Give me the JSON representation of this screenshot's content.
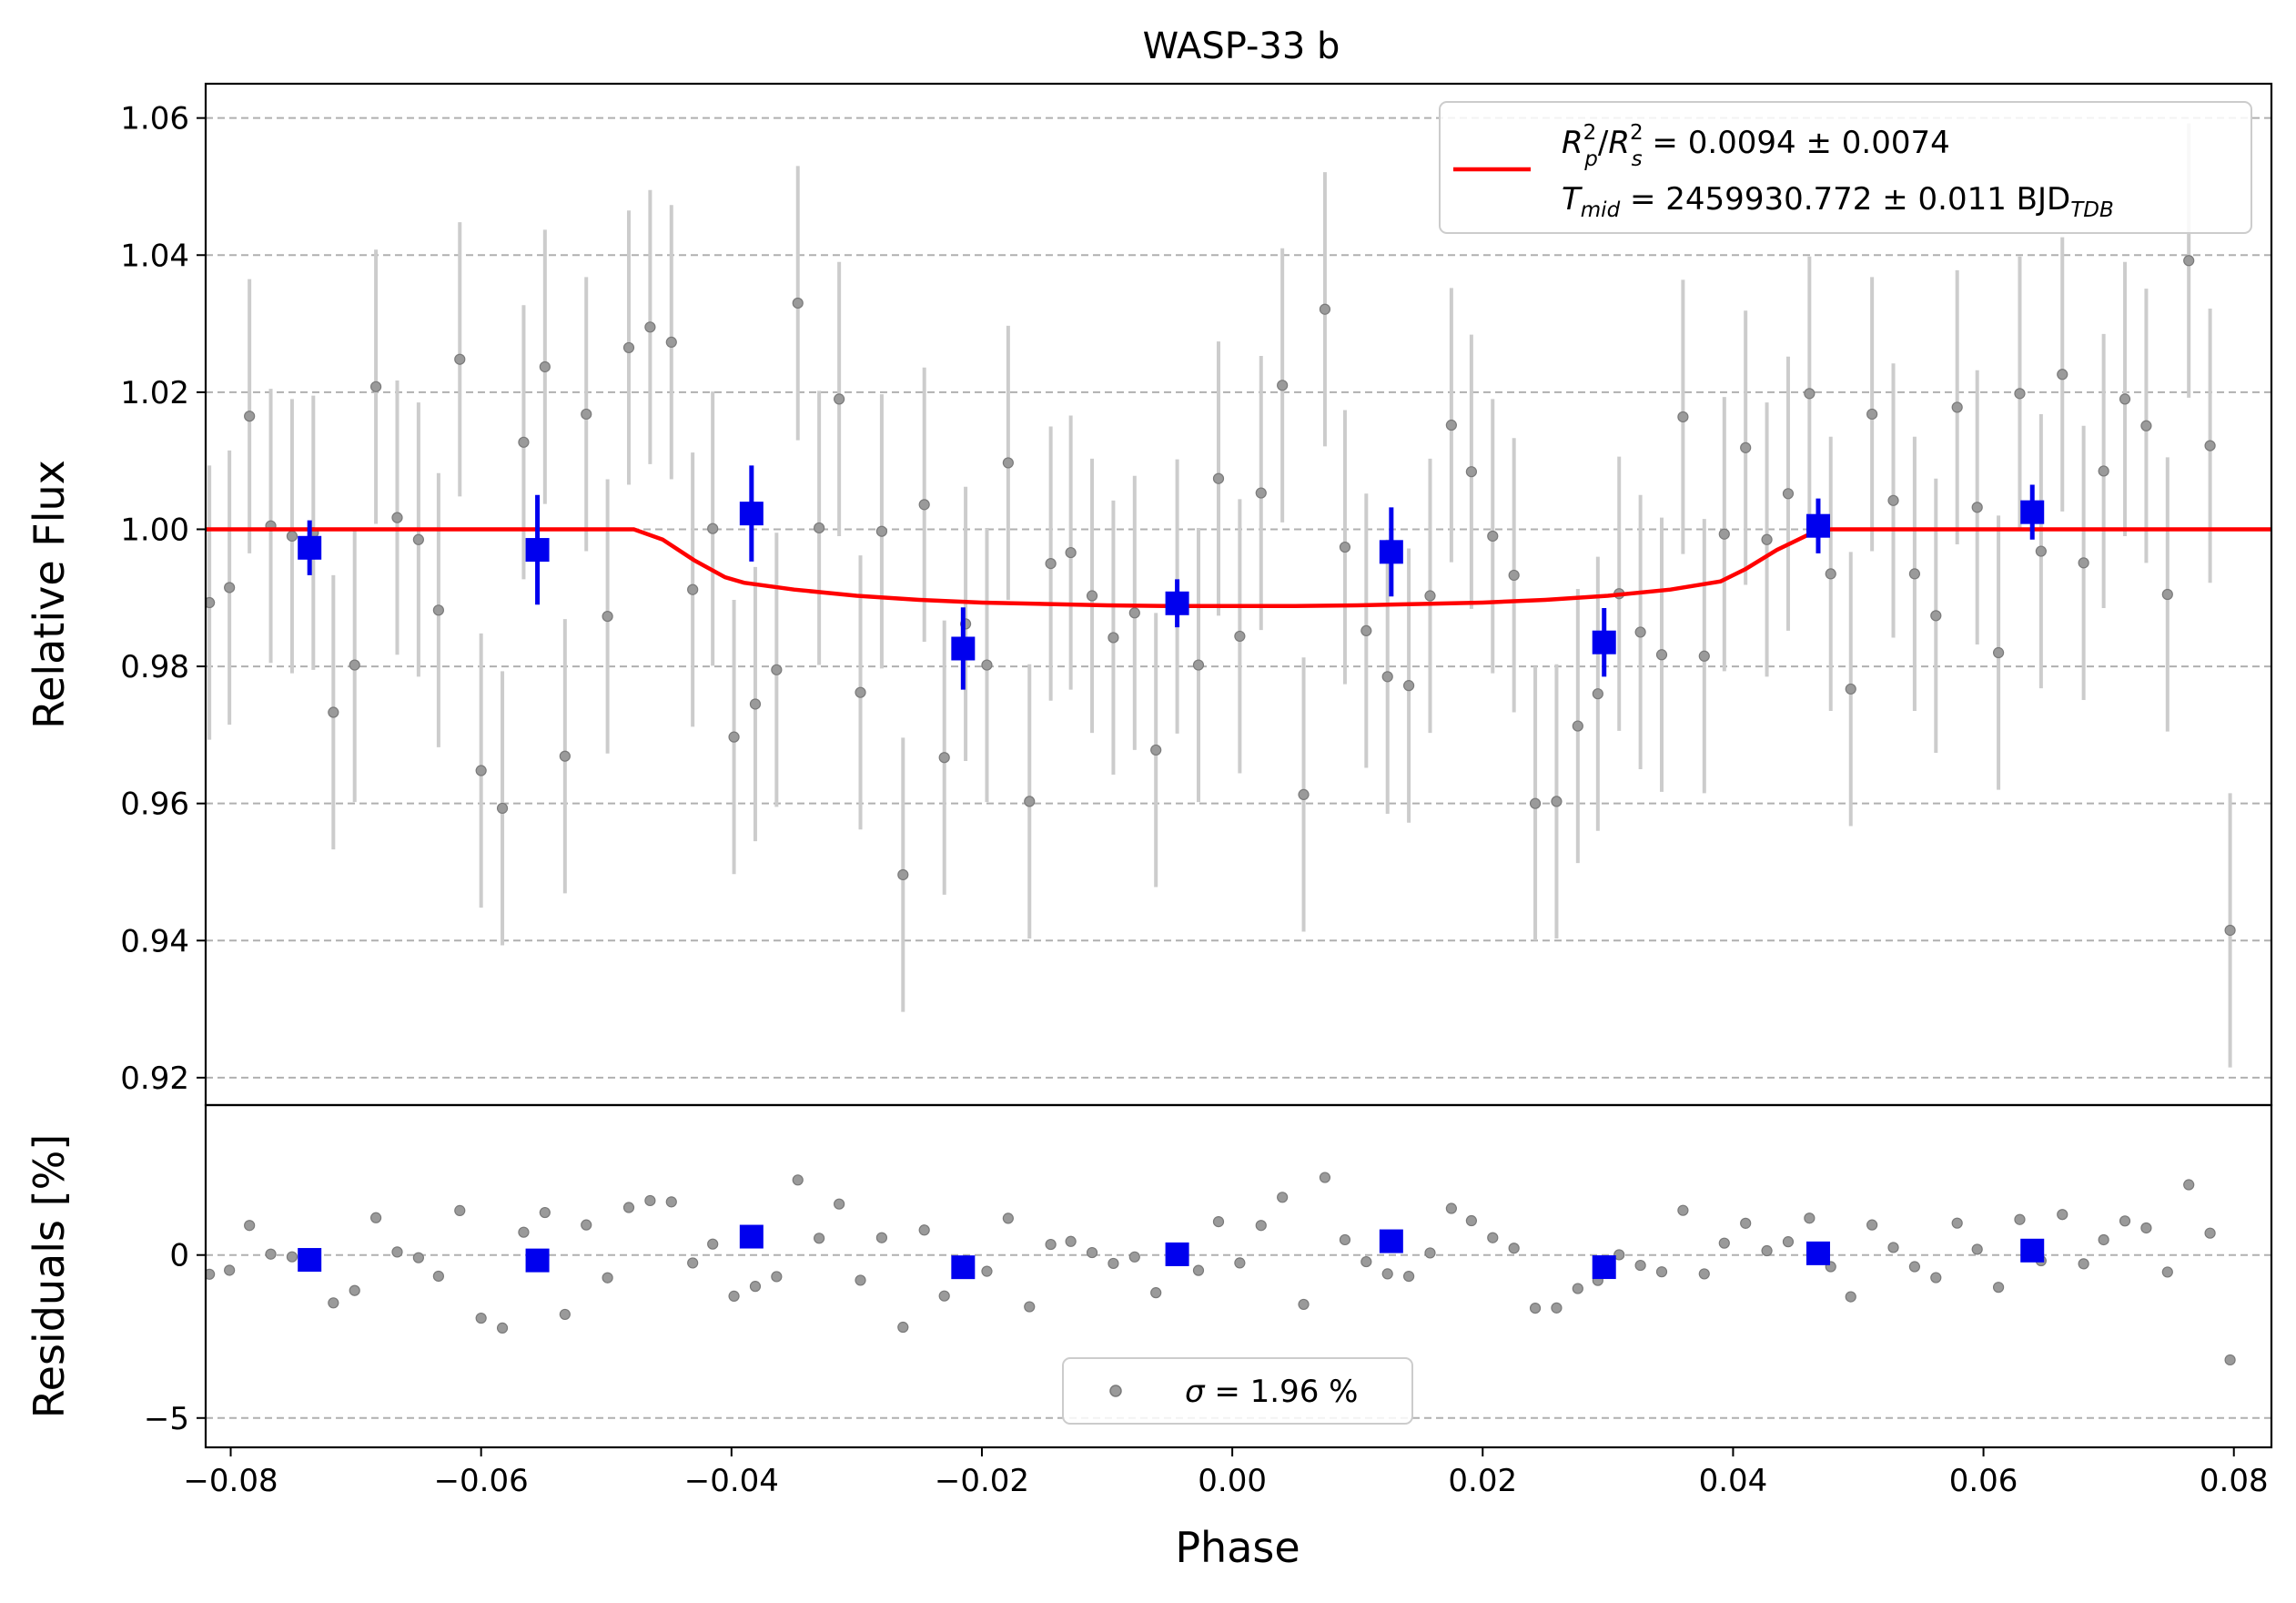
{
  "chart_data": {
    "type": "scatter",
    "title": "WASP-33 b",
    "colors": {
      "raw": "#9a9a9a",
      "rawErr": "#cccccc",
      "binned": "#0000ee",
      "model": "#ff0000",
      "grid": "#b0b0b0"
    },
    "top_panel": {
      "ylabel": "Relative Flux",
      "xlim": [
        -0.082,
        0.083
      ],
      "ylim": [
        0.916,
        1.065
      ],
      "yticks": [
        0.92,
        0.94,
        0.96,
        0.98,
        1.0,
        1.02,
        1.04,
        1.06
      ],
      "ytick_labels": [
        "0.92",
        "0.94",
        "0.96",
        "0.98",
        "1.00",
        "1.02",
        "1.04",
        "1.06"
      ],
      "grid": "horizontal dashed",
      "legend": {
        "placement": "top-right",
        "rp_name": "R",
        "rp_sub": "p",
        "rp_sup": "2",
        "rs_sub": "s",
        "rs_sup": "2",
        "rp_value": " = 0.0094 ± 0.0074",
        "tmid_name": "T",
        "tmid_sub": "mid",
        "tmid_value": " = 2459930.772 ± 0.011 BJD",
        "tmid_unit_sub": "TDB"
      },
      "raw_points": [
        [
          -0.0817,
          0.9893
        ],
        [
          -0.0801,
          0.9915
        ],
        [
          -0.0785,
          1.0165
        ],
        [
          -0.0768,
          1.0005
        ],
        [
          -0.0751,
          0.999
        ],
        [
          -0.0734,
          0.9995
        ],
        [
          -0.0718,
          0.9733
        ],
        [
          -0.0701,
          0.9802
        ],
        [
          -0.0684,
          1.0208
        ],
        [
          -0.0667,
          1.0017
        ],
        [
          -0.065,
          0.9985
        ],
        [
          -0.0634,
          0.9882
        ],
        [
          -0.0617,
          1.0248
        ],
        [
          -0.06,
          0.9648
        ],
        [
          -0.0583,
          0.9593
        ],
        [
          -0.0566,
          1.0127
        ],
        [
          -0.0549,
          1.0237
        ],
        [
          -0.0533,
          0.9669
        ],
        [
          -0.0516,
          1.0168
        ],
        [
          -0.0499,
          0.9873
        ],
        [
          -0.0482,
          1.0265
        ],
        [
          -0.0465,
          1.0295
        ],
        [
          -0.0448,
          1.0273
        ],
        [
          -0.0431,
          0.9912
        ],
        [
          -0.0415,
          1.0001
        ],
        [
          -0.0398,
          0.9697
        ],
        [
          -0.0381,
          0.9745
        ],
        [
          -0.0364,
          0.9795
        ],
        [
          -0.0347,
          1.033
        ],
        [
          -0.033,
          1.0002
        ],
        [
          -0.0314,
          1.019
        ],
        [
          -0.0297,
          0.9762
        ],
        [
          -0.028,
          0.9997
        ],
        [
          -0.0263,
          0.9496
        ],
        [
          -0.0246,
          1.0036
        ],
        [
          -0.023,
          0.9667
        ],
        [
          -0.0213,
          0.9862
        ],
        [
          -0.0196,
          0.9802
        ],
        [
          -0.0179,
          1.0097
        ],
        [
          -0.0162,
          0.9603
        ],
        [
          -0.0145,
          0.995
        ],
        [
          -0.0129,
          0.9966
        ],
        [
          -0.0112,
          0.9903
        ],
        [
          -0.0095,
          0.9842
        ],
        [
          -0.0078,
          0.9878
        ],
        [
          -0.0061,
          0.9678
        ],
        [
          -0.0044,
          0.9902
        ],
        [
          -0.0027,
          0.9802
        ],
        [
          -0.0011,
          1.0074
        ],
        [
          0.0006,
          0.9844
        ],
        [
          0.0023,
          1.0053
        ],
        [
          0.004,
          1.021
        ],
        [
          0.0057,
          0.9613
        ],
        [
          0.0074,
          1.0321
        ],
        [
          0.009,
          0.9974
        ],
        [
          0.0107,
          0.9852
        ],
        [
          0.0124,
          0.9785
        ],
        [
          0.0141,
          0.9772
        ],
        [
          0.0158,
          0.9903
        ],
        [
          0.0175,
          1.0152
        ],
        [
          0.0191,
          1.0084
        ],
        [
          0.0208,
          0.999
        ],
        [
          0.0225,
          0.9933
        ],
        [
          0.0242,
          0.96
        ],
        [
          0.0259,
          0.9603
        ],
        [
          0.0276,
          0.9713
        ],
        [
          0.0292,
          0.976
        ],
        [
          0.0309,
          0.9906
        ],
        [
          0.0326,
          0.985
        ],
        [
          0.0343,
          0.9817
        ],
        [
          0.036,
          1.0164
        ],
        [
          0.0377,
          0.9815
        ],
        [
          0.0393,
          0.9993
        ],
        [
          0.041,
          1.0119
        ],
        [
          0.0427,
          0.9985
        ],
        [
          0.0444,
          1.0052
        ],
        [
          0.0461,
          1.0198
        ],
        [
          0.0478,
          0.9935
        ],
        [
          0.0494,
          0.9767
        ],
        [
          0.0511,
          1.0168
        ],
        [
          0.0528,
          1.0042
        ],
        [
          0.0545,
          0.9935
        ],
        [
          0.0562,
          0.9874
        ],
        [
          0.0579,
          1.0178
        ],
        [
          0.0595,
          1.0032
        ],
        [
          0.0612,
          0.982
        ],
        [
          0.0629,
          1.0198
        ],
        [
          0.0646,
          0.9968
        ],
        [
          0.0663,
          1.0226
        ],
        [
          0.068,
          0.9951
        ],
        [
          0.0696,
          1.0085
        ],
        [
          0.0713,
          1.019
        ],
        [
          0.073,
          1.0151
        ],
        [
          0.0747,
          0.9905
        ],
        [
          0.0764,
          1.0392
        ],
        [
          0.0781,
          1.0122
        ],
        [
          0.0797,
          0.9415
        ]
      ],
      "raw_error": 0.02,
      "binned_points": [
        {
          "x": -0.0737,
          "y": 0.9973,
          "err": 0.004
        },
        {
          "x": -0.0555,
          "y": 0.997,
          "err": 0.008
        },
        {
          "x": -0.0384,
          "y": 1.0023,
          "err": 0.007
        },
        {
          "x": -0.0215,
          "y": 0.9826,
          "err": 0.006
        },
        {
          "x": -0.0044,
          "y": 0.9892,
          "err": 0.0035
        },
        {
          "x": 0.0127,
          "y": 0.9967,
          "err": 0.0065
        },
        {
          "x": 0.0297,
          "y": 0.9835,
          "err": 0.005
        },
        {
          "x": 0.0468,
          "y": 1.0005,
          "err": 0.004
        },
        {
          "x": 0.0639,
          "y": 1.0025,
          "err": 0.004
        }
      ],
      "model_curve": [
        [
          -0.082,
          1.0
        ],
        [
          -0.0478,
          1.0
        ],
        [
          -0.0455,
          0.9985
        ],
        [
          -0.043,
          0.9955
        ],
        [
          -0.0405,
          0.993
        ],
        [
          -0.039,
          0.9922
        ],
        [
          -0.035,
          0.9912
        ],
        [
          -0.03,
          0.9903
        ],
        [
          -0.025,
          0.9897
        ],
        [
          -0.02,
          0.9893
        ],
        [
          -0.015,
          0.9891
        ],
        [
          -0.01,
          0.9889
        ],
        [
          -0.005,
          0.9888
        ],
        [
          0.0,
          0.9888
        ],
        [
          0.005,
          0.9888
        ],
        [
          0.01,
          0.9889
        ],
        [
          0.015,
          0.9891
        ],
        [
          0.02,
          0.9893
        ],
        [
          0.025,
          0.9897
        ],
        [
          0.03,
          0.9903
        ],
        [
          0.035,
          0.9912
        ],
        [
          0.039,
          0.9924
        ],
        [
          0.041,
          0.9942
        ],
        [
          0.0435,
          0.997
        ],
        [
          0.046,
          0.9992
        ],
        [
          0.0478,
          1.0
        ],
        [
          0.083,
          1.0
        ]
      ]
    },
    "bottom_panel": {
      "ylabel": "Residuals [%]",
      "xlabel": "Phase",
      "xlim": [
        -0.082,
        0.083
      ],
      "ylim": [
        -5.9,
        4.6
      ],
      "yticks": [
        -5,
        0
      ],
      "ytick_labels": [
        "−5",
        "0"
      ],
      "xticks": [
        -0.08,
        -0.06,
        -0.04,
        -0.02,
        0.0,
        0.02,
        0.04,
        0.06,
        0.08
      ],
      "xtick_labels": [
        "−0.08",
        "−0.06",
        "−0.04",
        "−0.02",
        "0.00",
        "0.02",
        "0.04",
        "0.06",
        "0.08"
      ],
      "legend": {
        "placement": "bottom-center",
        "sigma_symbol": "σ",
        "sigma_text": " = 1.96 %"
      }
    }
  }
}
